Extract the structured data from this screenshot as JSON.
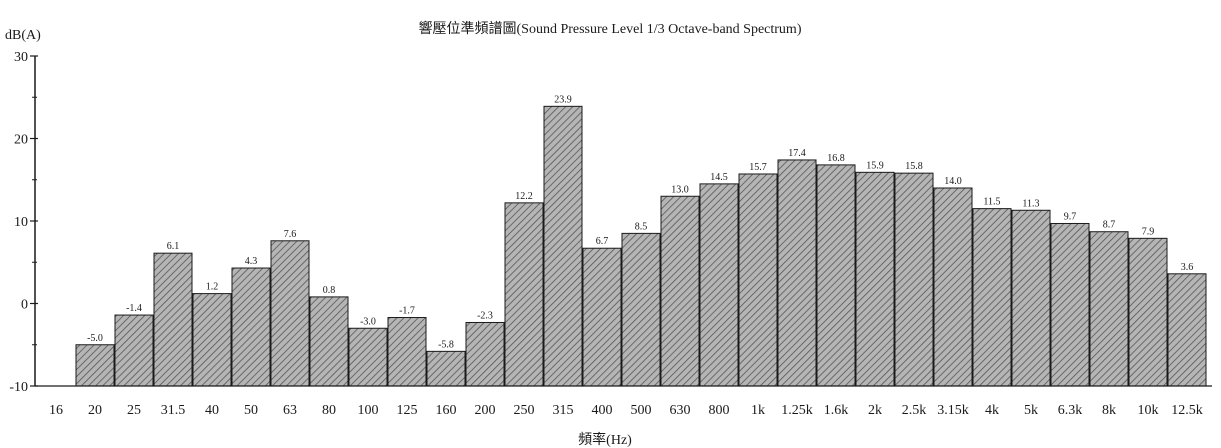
{
  "chart_data": {
    "type": "bar",
    "title": "響壓位準頻譜圖(Sound Pressure Level 1/3 Octave-band Spectrum)",
    "ylabel": "dB(A)",
    "xlabel": "頻率(Hz)",
    "ylim": [
      -10,
      30
    ],
    "yticks": [
      "-10",
      "0",
      "10",
      "20",
      "30"
    ],
    "categories": [
      "16",
      "20",
      "25",
      "31.5",
      "40",
      "50",
      "63",
      "80",
      "100",
      "125",
      "160",
      "200",
      "250",
      "315",
      "400",
      "500",
      "630",
      "800",
      "1k",
      "1.25k",
      "1.6k",
      "2k",
      "2.5k",
      "3.15k",
      "4k",
      "5k",
      "6.3k",
      "8k",
      "10k",
      "12.5k"
    ],
    "values": [
      null,
      -5.0,
      -1.4,
      6.1,
      1.2,
      4.3,
      7.6,
      0.8,
      -3.0,
      -1.7,
      -5.8,
      -2.3,
      12.2,
      23.9,
      6.7,
      8.5,
      13.0,
      14.5,
      15.7,
      17.4,
      16.8,
      15.9,
      15.8,
      14.0,
      11.5,
      11.3,
      9.7,
      8.7,
      7.9,
      3.6
    ],
    "data_labels": [
      "",
      "-5.0",
      "-1.4",
      "6.1",
      "1.2",
      "4.3",
      "7.6",
      "0.8",
      "-3.0",
      "-1.7",
      "-5.8",
      "-2.3",
      "12.2",
      "23.9",
      "6.7",
      "8.5",
      "13.0",
      "14.5",
      "15.7",
      "17.4",
      "16.8",
      "15.9",
      "15.8",
      "14.0",
      "11.5",
      "11.3",
      "9.7",
      "8.7",
      "7.9",
      "3.6"
    ],
    "bar_fill": "#b5b5b5",
    "bar_hatch": "#555555",
    "bar_stroke": "#1a1a1a",
    "axis_color": "#1a1a1a"
  }
}
